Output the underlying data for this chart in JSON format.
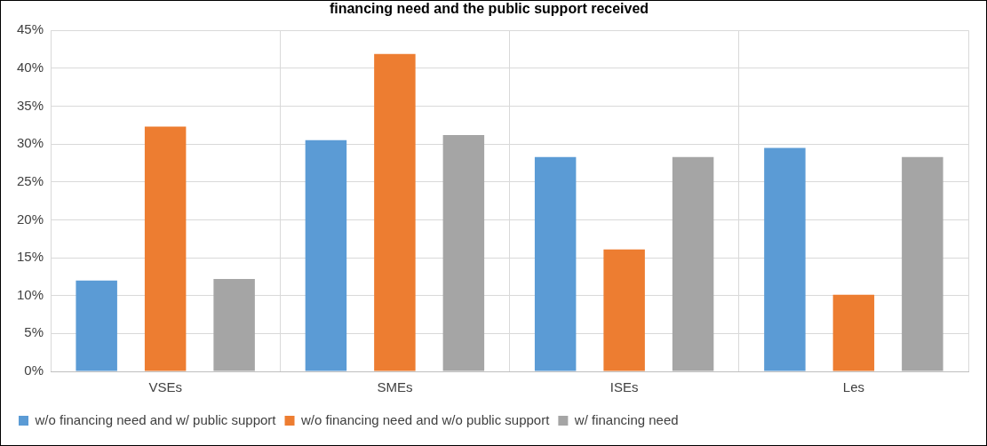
{
  "chart_data": {
    "type": "bar",
    "title": "financing need and the public support received",
    "categories": [
      "VSEs",
      "SMEs",
      "ISEs",
      "Les"
    ],
    "series": [
      {
        "name": "w/o financing need and w/ public support",
        "color": "#5b9bd5",
        "values": [
          12,
          30.5,
          28.3,
          29.5
        ]
      },
      {
        "name": "w/o financing need and w/o public support",
        "color": "#ed7d31",
        "values": [
          32.3,
          41.9,
          16.1,
          10.1
        ]
      },
      {
        "name": "w/ financing need",
        "color": "#a5a5a5",
        "values": [
          12.2,
          31.2,
          28.3,
          28.3
        ]
      }
    ],
    "ylim": [
      0,
      45
    ],
    "yticks": [
      {
        "value": 0,
        "label": "0%"
      },
      {
        "value": 5,
        "label": "5%"
      },
      {
        "value": 10,
        "label": "10%"
      },
      {
        "value": 15,
        "label": "15%"
      },
      {
        "value": 20,
        "label": "20%"
      },
      {
        "value": 25,
        "label": "25%"
      },
      {
        "value": 30,
        "label": "30%"
      },
      {
        "value": 35,
        "label": "35%"
      },
      {
        "value": 40,
        "label": "40%"
      },
      {
        "value": 45,
        "label": "45%"
      }
    ],
    "grid": true,
    "legend": "bottom left"
  }
}
